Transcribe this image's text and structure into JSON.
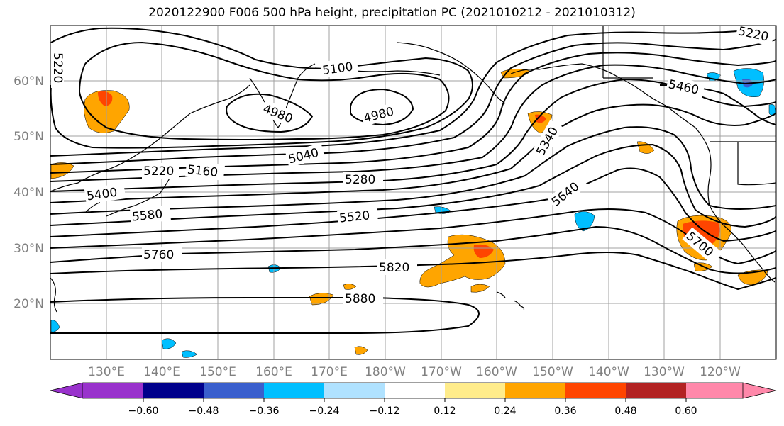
{
  "title": "2020122900 F006 500 hPa height, precipitation PC (2021010212 - 2021010312)",
  "map": {
    "lat_ticks": [
      "60°N",
      "50°N",
      "40°N",
      "30°N",
      "20°N"
    ],
    "lon_ticks": [
      "130°E",
      "140°E",
      "150°E",
      "160°E",
      "170°E",
      "180°W",
      "170°W",
      "160°W",
      "150°W",
      "140°W",
      "130°W",
      "120°W"
    ],
    "contour_labels": [
      "5220",
      "5100",
      "4980",
      "4980",
      "5460",
      "5220",
      "5340",
      "5040",
      "5220",
      "5160",
      "5280",
      "5400",
      "5640",
      "5580",
      "5520",
      "5760",
      "5700",
      "5820",
      "5880"
    ],
    "colors": {
      "contour": "#000000",
      "grid": "#a0a0a0",
      "coast": "#000000"
    }
  },
  "colorbar": {
    "ticks": [
      "−0.60",
      "−0.48",
      "−0.36",
      "−0.24",
      "−0.12",
      "0.12",
      "0.24",
      "0.36",
      "0.48",
      "0.60"
    ],
    "colors": [
      "#9932cc",
      "#00008b",
      "#3a5fcd",
      "#00bfff",
      "#b0e2ff",
      "#ffffff",
      "#ffec8b",
      "#ffa500",
      "#ff4500",
      "#b22222",
      "#ff88aa"
    ]
  }
}
